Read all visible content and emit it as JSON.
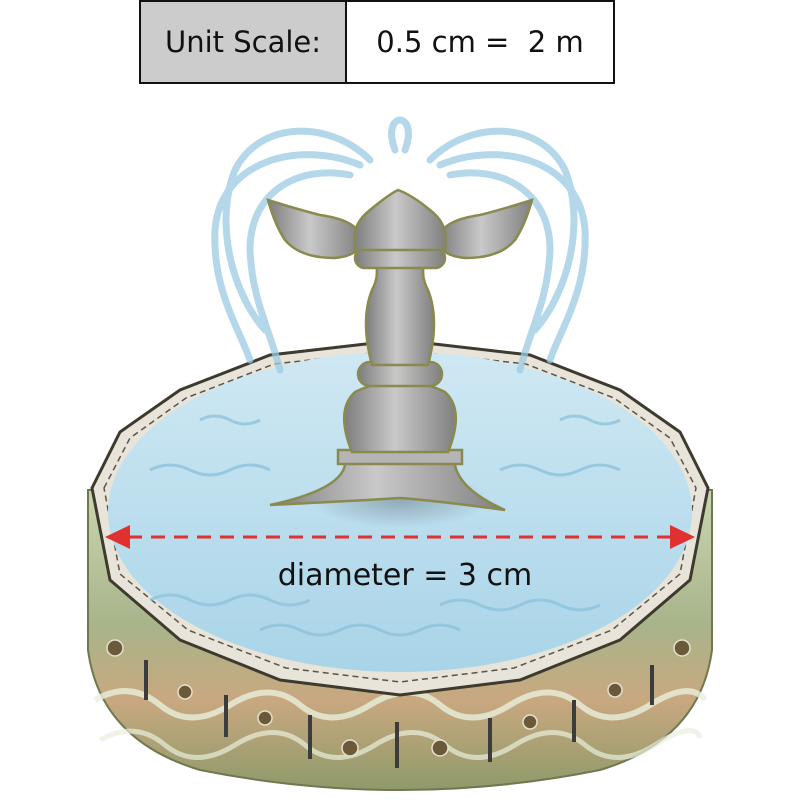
{
  "unit_scale": {
    "label": "Unit Scale:",
    "value": "0.5 cm =  2 m"
  },
  "measurement": {
    "label": "diameter = 3 cm"
  },
  "colors": {
    "water": "#bfe0ee",
    "basin_outer": "#8f9a6a",
    "basin_band": "#c9a57e",
    "statue": "#9a9a9a",
    "arrow": "#e03030"
  },
  "icons": [
    "fountain-statue",
    "water-jets",
    "double-arrow"
  ]
}
